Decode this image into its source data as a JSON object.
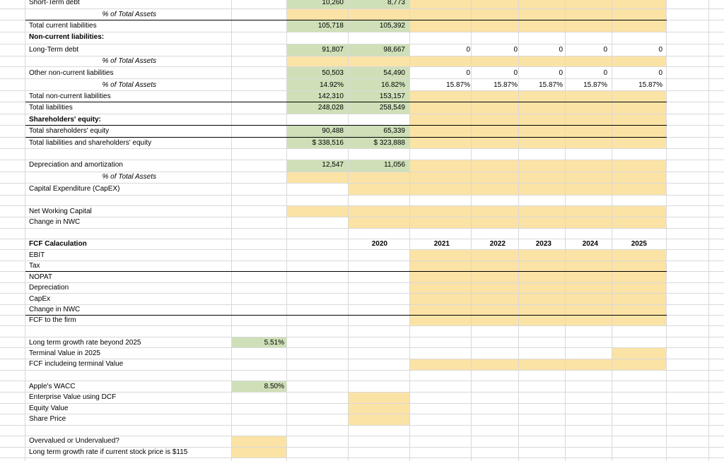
{
  "colors": {
    "green_fill": "#cfe0b8",
    "yellow_fill": "#fbe3a6",
    "gridline": "#d9d9d9",
    "border": "#000000"
  },
  "rows": {
    "short_term_debt": {
      "label": "Short-Term debt",
      "y2019": "10,260",
      "y2020": "8,773"
    },
    "pct_total_assets_1": {
      "label": "% of Total Assets"
    },
    "total_current_liabilities": {
      "label": "Total current liabilities",
      "y2019": "105,718",
      "y2020": "105,392"
    },
    "non_current_header": {
      "label": "Non-current liabilities:"
    },
    "long_term_debt": {
      "label": "Long-Term debt",
      "y2019": "91,807",
      "y2020": "98,667",
      "y2021": "0",
      "y2022": "0",
      "y2023": "0",
      "y2024": "0",
      "y2025": "0"
    },
    "pct_total_assets_2": {
      "label": "% of Total Assets"
    },
    "other_non_current": {
      "label": "Other non-current liabilities",
      "y2019": "50,503",
      "y2020": "54,490",
      "y2021": "0",
      "y2022": "0",
      "y2023": "0",
      "y2024": "0",
      "y2025": "0"
    },
    "pct_total_assets_3": {
      "label": "% of Total Assets",
      "y2019": "14.92%",
      "y2020": "16.82%",
      "y2021": "15.87%",
      "y2022": "15.87%",
      "y2023": "15.87%",
      "y2024": "15.87%",
      "y2025": "15.87%"
    },
    "total_non_current": {
      "label": "Total non-current liabilities",
      "y2019": "142,310",
      "y2020": "153,157"
    },
    "total_liabilities": {
      "label": "Total liabilities",
      "y2019": "248,028",
      "y2020": "258,549"
    },
    "shareholders_header": {
      "label": "Shareholders' equity:"
    },
    "total_shareholders_equity": {
      "label": "Total shareholders' equity",
      "y2019": "90,488",
      "y2020": "65,339"
    },
    "total_liab_and_equity": {
      "label": "Total liabilities and shareholders' equity",
      "y2019": "$ 338,516",
      "y2020": "$ 323,888"
    },
    "depreciation_amortization": {
      "label": "Depreciation and amortization",
      "y2019": "12,547",
      "y2020": "11,056"
    },
    "pct_total_assets_4": {
      "label": "% of Total Assets"
    },
    "capex": {
      "label": "Capital Expenditure (CapEX)"
    },
    "nwc": {
      "label": "Net Working Capital"
    },
    "change_nwc": {
      "label": "Change in NWC"
    },
    "fcf_header": {
      "label": "FCF Calaculation",
      "y2020": "2020",
      "y2021": "2021",
      "y2022": "2022",
      "y2023": "2023",
      "y2024": "2024",
      "y2025": "2025"
    },
    "ebit": {
      "label": "EBIT"
    },
    "tax": {
      "label": "Tax"
    },
    "nopat": {
      "label": "NOPAT"
    },
    "depreciation": {
      "label": "Depreciation"
    },
    "capex_short": {
      "label": "CapEx"
    },
    "change_nwc_2": {
      "label": "Change in NWC"
    },
    "fcf_to_firm": {
      "label": "FCF to the firm"
    },
    "long_term_growth": {
      "label": "Long term growth rate beyond 2025",
      "value": "5.51%"
    },
    "terminal_value": {
      "label": "Terminal Value in 2025"
    },
    "fcf_terminal": {
      "label": "FCF includeing terminal Value"
    },
    "wacc": {
      "label": "Apple's WACC",
      "value": "8.50%"
    },
    "enterprise_value": {
      "label": "Enterprise Value using DCF"
    },
    "equity_value": {
      "label": "Equity Value"
    },
    "share_price": {
      "label": "Share Price"
    },
    "over_under": {
      "label": "Overvalued or Undervalued?"
    },
    "ltg_if_115": {
      "label": "Long term growth rate if current stock price is $115"
    }
  }
}
